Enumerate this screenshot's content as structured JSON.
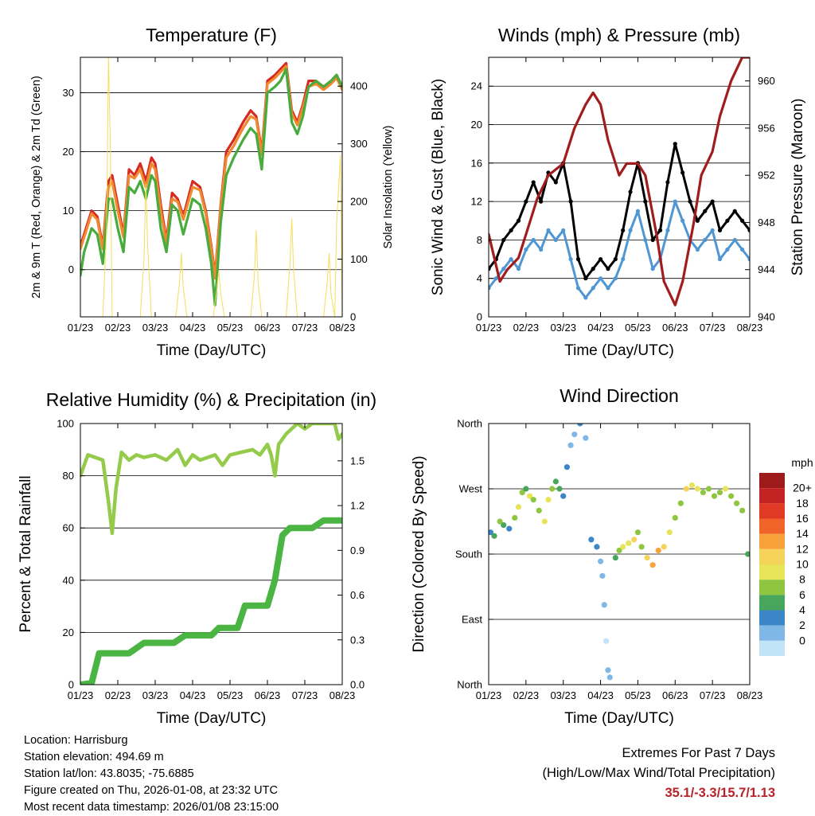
{
  "colors": {
    "temp_9m": "#d62a20",
    "temp_2m": "#f08a30",
    "dewpoint": "#48ab3e",
    "solar": "#f5dd5a",
    "wind": "#4f97d4",
    "gust": "#000000",
    "pressure": "#a11c1c",
    "rh": "#94cb4a",
    "precip": "#4bb544",
    "extremes_text": "#b82228"
  },
  "chart_data": [
    {
      "id": "temperature",
      "type": "line",
      "title": "Temperature (F)",
      "xlabel": "Time (Day/UTC)",
      "ylabel": "2m & 9m T (Red, Orange) & 2m Td (Green)",
      "y2label": "Solar Insolation (Yellow)",
      "x_tick_labels": [
        "01/23",
        "02/23",
        "03/23",
        "04/23",
        "05/23",
        "06/23",
        "07/23",
        "08/23"
      ],
      "xlim": [
        0,
        7
      ],
      "ylim": [
        -8,
        36
      ],
      "y_ticks": [
        0,
        10,
        20,
        30
      ],
      "y2lim": [
        0,
        450
      ],
      "y2_ticks": [
        0,
        100,
        200,
        300,
        400
      ],
      "series": [
        {
          "name": "9m T",
          "color": "#d62a20",
          "x": [
            0,
            0.1,
            0.3,
            0.45,
            0.6,
            0.75,
            0.85,
            1.0,
            1.15,
            1.3,
            1.45,
            1.6,
            1.75,
            1.9,
            2.0,
            2.15,
            2.3,
            2.45,
            2.6,
            2.75,
            3.0,
            3.2,
            3.35,
            3.5,
            3.6,
            3.75,
            3.9,
            4.1,
            4.35,
            4.55,
            4.7,
            4.85,
            5.0,
            5.2,
            5.35,
            5.5,
            5.65,
            5.8,
            5.95,
            6.1,
            6.3,
            6.5,
            6.7,
            6.85,
            7.0
          ],
          "values": [
            4,
            6,
            10,
            9,
            4,
            15,
            16,
            11,
            6,
            17,
            16,
            18,
            15,
            19,
            18,
            11,
            5,
            13,
            12,
            9,
            15,
            14,
            10,
            4,
            -1,
            11,
            20,
            22,
            25,
            27,
            26,
            20,
            32,
            33,
            34,
            35,
            27,
            25,
            28,
            32,
            32,
            31,
            32,
            33,
            31
          ]
        },
        {
          "name": "2m T",
          "color": "#f08a30",
          "x": [
            0,
            0.1,
            0.3,
            0.45,
            0.6,
            0.75,
            0.85,
            1.0,
            1.15,
            1.3,
            1.45,
            1.6,
            1.75,
            1.9,
            2.0,
            2.15,
            2.3,
            2.45,
            2.6,
            2.75,
            3.0,
            3.2,
            3.35,
            3.5,
            3.6,
            3.75,
            3.9,
            4.1,
            4.35,
            4.55,
            4.7,
            4.85,
            5.0,
            5.2,
            5.35,
            5.5,
            5.65,
            5.8,
            5.95,
            6.1,
            6.3,
            6.5,
            6.7,
            6.85,
            7.0
          ],
          "values": [
            3.5,
            5.5,
            9.5,
            8.5,
            3.5,
            14,
            15,
            10,
            5.5,
            16,
            15.5,
            17,
            14,
            18,
            17,
            10,
            4.5,
            12,
            11.5,
            8.5,
            14,
            13.5,
            9.5,
            3.5,
            -1.5,
            10.5,
            19,
            21,
            24,
            26,
            25.5,
            19.5,
            31.5,
            32.5,
            33.5,
            34.5,
            26.5,
            24.5,
            27.5,
            31,
            31.5,
            30.5,
            31.5,
            32.5,
            30.5
          ]
        },
        {
          "name": "2m Td",
          "color": "#48ab3e",
          "x": [
            0,
            0.1,
            0.3,
            0.45,
            0.6,
            0.75,
            0.85,
            1.0,
            1.15,
            1.3,
            1.45,
            1.6,
            1.75,
            1.9,
            2.0,
            2.15,
            2.3,
            2.45,
            2.6,
            2.75,
            3.0,
            3.2,
            3.35,
            3.5,
            3.6,
            3.75,
            3.9,
            4.1,
            4.35,
            4.55,
            4.7,
            4.85,
            5.0,
            5.2,
            5.35,
            5.5,
            5.65,
            5.8,
            5.95,
            6.1,
            6.3,
            6.5,
            6.7,
            6.85,
            7.0
          ],
          "values": [
            -1,
            3,
            7,
            6,
            1,
            12,
            12,
            7,
            3,
            14,
            13,
            15,
            12,
            16,
            15,
            7,
            3,
            11,
            10,
            6,
            12,
            11,
            7,
            1,
            -6,
            8,
            16,
            19,
            22,
            24,
            23,
            17,
            30,
            31,
            32,
            34,
            25,
            23,
            26,
            31,
            32,
            31,
            32,
            33,
            31
          ]
        },
        {
          "name": "Solar Insolation",
          "axis": "y2",
          "color": "#f5dd5a",
          "x": [
            0.6,
            0.7,
            0.75,
            0.8,
            0.85,
            0.95,
            1.6,
            1.7,
            1.75,
            1.8,
            1.9,
            2.55,
            2.65,
            2.7,
            2.75,
            2.85,
            3.55,
            3.65,
            3.7,
            3.75,
            3.85,
            4.55,
            4.65,
            4.7,
            4.75,
            4.85,
            5.5,
            5.6,
            5.65,
            5.7,
            5.8,
            6.5,
            6.6,
            6.65,
            6.7,
            6.8,
            6.85,
            6.95,
            7.0
          ],
          "values": [
            0,
            150,
            450,
            300,
            0,
            0,
            0,
            100,
            230,
            120,
            0,
            0,
            60,
            110,
            50,
            0,
            0,
            50,
            80,
            40,
            0,
            0,
            70,
            150,
            60,
            0,
            0,
            90,
            170,
            80,
            0,
            0,
            60,
            110,
            40,
            0,
            160,
            280,
            0
          ]
        }
      ]
    },
    {
      "id": "winds",
      "type": "line",
      "title": "Winds (mph) & Pressure (mb)",
      "xlabel": "Time (Day/UTC)",
      "ylabel": "Sonic Wind & Gust (Blue, Black)",
      "y2label": "Station Pressure (Maroon)",
      "x_tick_labels": [
        "01/23",
        "02/23",
        "03/23",
        "04/23",
        "05/23",
        "06/23",
        "07/23",
        "08/23"
      ],
      "xlim": [
        0,
        7
      ],
      "ylim": [
        0,
        27
      ],
      "y_ticks": [
        0,
        4,
        8,
        12,
        16,
        20,
        24
      ],
      "y2lim": [
        940,
        962
      ],
      "y2_ticks": [
        940,
        944,
        948,
        952,
        956,
        960
      ],
      "series": [
        {
          "name": "Sonic Wind",
          "color": "#4f97d4",
          "x": [
            0,
            0.2,
            0.4,
            0.6,
            0.8,
            1.0,
            1.2,
            1.4,
            1.6,
            1.8,
            2.0,
            2.2,
            2.4,
            2.6,
            2.8,
            3.0,
            3.2,
            3.4,
            3.6,
            3.8,
            4.0,
            4.2,
            4.4,
            4.6,
            4.8,
            5.0,
            5.2,
            5.4,
            5.6,
            5.8,
            6.0,
            6.2,
            6.4,
            6.6,
            6.8,
            7.0
          ],
          "values": [
            3,
            4,
            5,
            6,
            5,
            7,
            8,
            7,
            9,
            8,
            9,
            6,
            3,
            2,
            3,
            4,
            3,
            4,
            6,
            9,
            11,
            8,
            5,
            6,
            9,
            12,
            10,
            8,
            7,
            8,
            9,
            6,
            7,
            8,
            7,
            6
          ]
        },
        {
          "name": "Gust",
          "color": "#000000",
          "x": [
            0,
            0.2,
            0.4,
            0.6,
            0.8,
            1.0,
            1.2,
            1.4,
            1.6,
            1.8,
            2.0,
            2.2,
            2.4,
            2.6,
            2.8,
            3.0,
            3.2,
            3.4,
            3.6,
            3.8,
            4.0,
            4.2,
            4.4,
            4.6,
            4.8,
            5.0,
            5.2,
            5.4,
            5.6,
            5.8,
            6.0,
            6.2,
            6.4,
            6.6,
            6.8,
            7.0
          ],
          "values": [
            5,
            6,
            8,
            9,
            10,
            12,
            14,
            12,
            15,
            14,
            16,
            12,
            6,
            4,
            5,
            6,
            5,
            6,
            9,
            13,
            16,
            12,
            8,
            9,
            14,
            18,
            15,
            12,
            10,
            11,
            12,
            9,
            10,
            11,
            10,
            9
          ]
        },
        {
          "name": "Station Pressure",
          "axis": "y2",
          "color": "#a11c1c",
          "x": [
            0,
            0.3,
            0.5,
            0.8,
            1.0,
            1.3,
            1.6,
            2.0,
            2.3,
            2.6,
            2.8,
            3.0,
            3.2,
            3.5,
            3.7,
            4.0,
            4.2,
            4.5,
            4.7,
            5.0,
            5.2,
            5.5,
            5.7,
            6.0,
            6.2,
            6.5,
            6.8,
            7.0
          ],
          "values": [
            947,
            943,
            944,
            945,
            947,
            950,
            952,
            953,
            956,
            958,
            959,
            958,
            955,
            952,
            953,
            953,
            952,
            947,
            943,
            941,
            943,
            948,
            952,
            954,
            957,
            960,
            962,
            962
          ]
        }
      ]
    },
    {
      "id": "humidity",
      "type": "line",
      "title": "Relative Humidity (%) & Precipitation (in)",
      "xlabel": "Time (Day/UTC)",
      "ylabel": "Percent & Total Rainfall",
      "x_tick_labels": [
        "01/23",
        "02/23",
        "03/23",
        "04/23",
        "05/23",
        "06/23",
        "07/23",
        "08/23"
      ],
      "xlim": [
        0,
        7
      ],
      "ylim": [
        0,
        100
      ],
      "y_ticks": [
        0,
        20,
        40,
        60,
        80,
        100
      ],
      "y2lim": [
        0,
        1.75
      ],
      "y2_ticks": [
        "0.0",
        "0.3",
        "0.6",
        "0.9",
        "1.2",
        "1.5"
      ],
      "series": [
        {
          "name": "Relative Humidity",
          "color": "#94cb4a",
          "x": [
            0,
            0.2,
            0.4,
            0.6,
            0.75,
            0.85,
            0.95,
            1.1,
            1.3,
            1.5,
            1.7,
            2.0,
            2.3,
            2.6,
            2.8,
            3.0,
            3.2,
            3.4,
            3.6,
            3.8,
            4.0,
            4.3,
            4.6,
            4.8,
            5.0,
            5.1,
            5.2,
            5.3,
            5.5,
            5.8,
            6.0,
            6.2,
            6.4,
            6.6,
            6.8,
            6.9,
            7.0
          ],
          "values": [
            80,
            88,
            87,
            86,
            70,
            58,
            75,
            89,
            86,
            88,
            87,
            88,
            86,
            90,
            84,
            88,
            86,
            87,
            88,
            84,
            88,
            89,
            90,
            88,
            92,
            88,
            80,
            92,
            96,
            100,
            98,
            100,
            100,
            100,
            100,
            94,
            96
          ]
        },
        {
          "name": "Total Rainfall",
          "axis": "y2",
          "color": "#4bb544",
          "x": [
            0,
            0.3,
            0.5,
            1.3,
            1.7,
            2.5,
            2.8,
            3.5,
            3.7,
            4.2,
            4.4,
            5.0,
            5.2,
            5.4,
            5.6,
            6.2,
            6.5,
            6.8,
            7.0
          ],
          "values": [
            0,
            0.01,
            0.21,
            0.21,
            0.28,
            0.28,
            0.33,
            0.33,
            0.38,
            0.38,
            0.53,
            0.53,
            0.7,
            1.0,
            1.05,
            1.05,
            1.1,
            1.1,
            1.1
          ]
        }
      ]
    },
    {
      "id": "direction",
      "type": "scatter",
      "title": "Wind Direction",
      "xlabel": "Time (Day/UTC)",
      "ylabel": "Direction (Colored By Speed)",
      "x_tick_labels": [
        "01/23",
        "02/23",
        "03/23",
        "04/23",
        "05/23",
        "06/23",
        "07/23",
        "08/23"
      ],
      "xlim": [
        0,
        7
      ],
      "ylim": [
        0,
        360
      ],
      "y_ticks": [
        0,
        90,
        180,
        270,
        360
      ],
      "y_tick_labels": [
        "North",
        "East",
        "South",
        "West",
        "North"
      ],
      "colorbar": {
        "title": "mph",
        "labels": [
          "20+",
          "18",
          "16",
          "14",
          "12",
          "10",
          "8",
          "6",
          "4",
          "2",
          "0"
        ],
        "colors": [
          "#9e1b1b",
          "#c42323",
          "#e03a25",
          "#f0642a",
          "#f9a23c",
          "#f5d35a",
          "#e8e45a",
          "#8ec63f",
          "#48a65c",
          "#3a86c6",
          "#7fb8e6",
          "#c2e4f7"
        ]
      },
      "series": [
        {
          "name": "Wind Direction",
          "x": [
            0.05,
            0.15,
            0.3,
            0.4,
            0.55,
            0.7,
            0.8,
            0.9,
            1.0,
            1.1,
            1.2,
            1.35,
            1.5,
            1.6,
            1.7,
            1.8,
            1.9,
            2.0,
            2.1,
            2.2,
            2.3,
            2.45,
            2.6,
            2.75,
            2.9,
            3.0,
            3.05,
            3.1,
            3.15,
            3.2,
            3.25,
            3.4,
            3.5,
            3.6,
            3.75,
            3.9,
            4.0,
            4.1,
            4.25,
            4.4,
            4.55,
            4.7,
            4.85,
            5.0,
            5.15,
            5.3,
            5.45,
            5.6,
            5.75,
            5.9,
            6.05,
            6.2,
            6.35,
            6.5,
            6.65,
            6.8,
            6.95
          ],
          "values": [
            210,
            205,
            225,
            220,
            215,
            230,
            245,
            265,
            270,
            260,
            255,
            240,
            225,
            255,
            270,
            280,
            270,
            260,
            300,
            330,
            345,
            360,
            340,
            200,
            190,
            170,
            150,
            110,
            60,
            20,
            10,
            175,
            185,
            190,
            195,
            200,
            210,
            190,
            175,
            165,
            185,
            190,
            210,
            230,
            250,
            270,
            275,
            270,
            265,
            270,
            260,
            265,
            270,
            260,
            250,
            240,
            180
          ],
          "speeds": [
            4,
            6,
            8,
            6,
            5,
            9,
            10,
            8,
            7,
            11,
            9,
            8,
            10,
            10,
            9,
            7,
            6,
            5,
            4,
            3,
            2,
            4,
            3,
            5,
            4,
            3,
            2,
            2,
            1,
            2,
            3,
            6,
            9,
            11,
            10,
            12,
            9,
            8,
            12,
            15,
            14,
            12,
            11,
            9,
            8,
            12,
            11,
            10,
            9,
            8,
            9,
            9,
            10,
            8,
            9,
            9,
            6
          ]
        }
      ]
    }
  ],
  "info": {
    "location": "Location: Harrisburg",
    "elevation": "Station elevation: 494.69 m",
    "latlon": "Station lat/lon: 43.8035; -75.6885",
    "created": "Figure created on Thu, 2026-01-08, at 23:32 UTC",
    "latest": "Most recent data timestamp: 2026/01/08 23:15:00"
  },
  "extremes": {
    "title": "Extremes For Past 7 Days",
    "subtitle": "(High/Low/Max Wind/Total Precipitation)",
    "values": "35.1/-3.3/15.7/1.13"
  }
}
